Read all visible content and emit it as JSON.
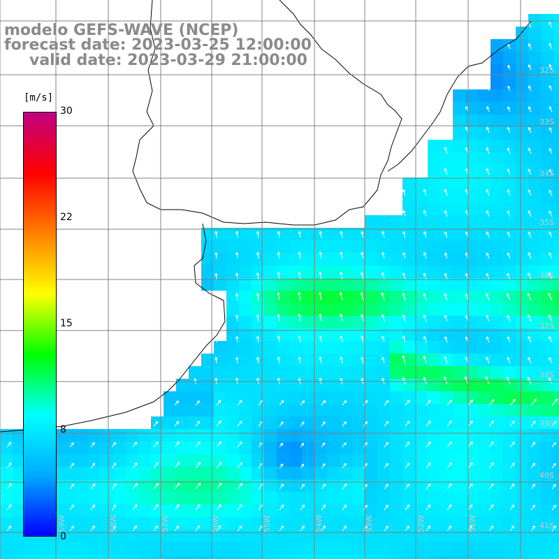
{
  "header": {
    "model_line": "modelo GEFS-WAVE (NCEP)",
    "forecast_line": "forecast date: 2023-03-25 12:00:00",
    "valid_line": "valid date: 2023-03-29 21:00:00"
  },
  "colorbar": {
    "unit": "[m/s]",
    "ticks": [
      "30",
      "22",
      "15",
      "8",
      "0"
    ],
    "tick_values": [
      30,
      22,
      15,
      8,
      0
    ],
    "colors": [
      "#0000ff",
      "#00aaff",
      "#00ffff",
      "#00ff00",
      "#ffff00",
      "#ff8000",
      "#ff0000",
      "#c00080"
    ]
  },
  "map": {
    "lat_labels": [
      "32S",
      "33S",
      "34S",
      "35S",
      "36S",
      "37S",
      "38S",
      "39S",
      "40S",
      "41S"
    ],
    "lon_labels": [
      "59W",
      "58W",
      "57W",
      "56W",
      "55W",
      "54W",
      "53W",
      "52W",
      "51W"
    ],
    "land_color": "#ffffff",
    "grid_color": "#808080",
    "arrow_color": "#ffffff"
  }
}
